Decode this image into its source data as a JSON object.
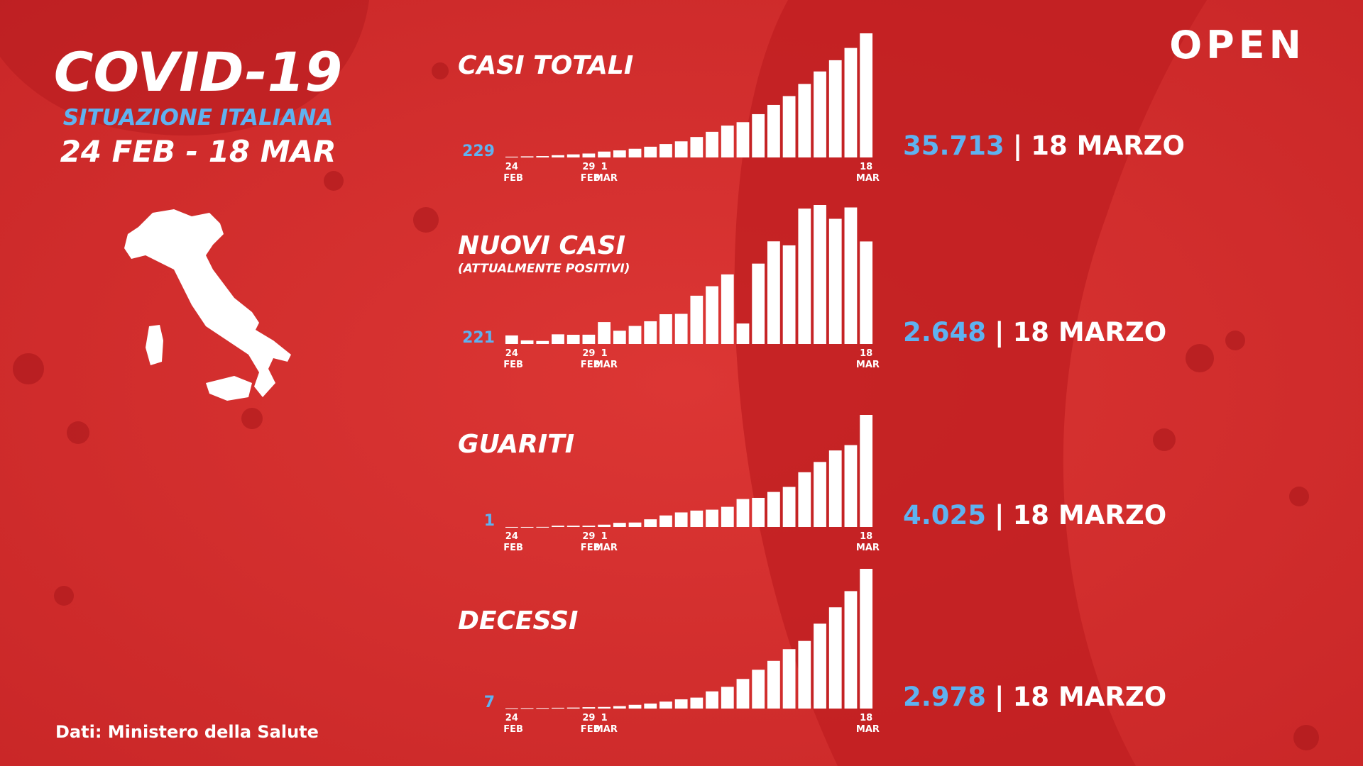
{
  "header": {
    "title": "COVID-19",
    "subtitle": "SITUAZIONE ITALIANA",
    "period": "24 FEB - 18 MAR",
    "logo": "OPEN",
    "source": "Dati: Ministero della Salute"
  },
  "chart_data": [
    {
      "type": "bar",
      "title": "CASI TOTALI",
      "color": "#ffffff",
      "categories": [
        "24 FEB",
        null,
        null,
        null,
        null,
        "29 FEB",
        "1 MAR",
        null,
        null,
        null,
        null,
        null,
        null,
        null,
        null,
        null,
        null,
        null,
        null,
        null,
        null,
        null,
        null,
        "18 MAR"
      ],
      "values": [
        229,
        322,
        400,
        650,
        888,
        1128,
        1694,
        2036,
        2502,
        3089,
        3858,
        4636,
        5883,
        7375,
        9172,
        10149,
        12462,
        15113,
        17660,
        21157,
        24747,
        27980,
        31506,
        35713
      ],
      "highlight": {
        "value_label": "35.713",
        "separator": "|",
        "date": "18 MARZO"
      }
    },
    {
      "type": "bar",
      "title": "NUOVI CASI",
      "subtitle": "(ATTUALMENTE POSITIVI)",
      "color": "#ffffff",
      "categories": [
        "24 FEB",
        null,
        null,
        null,
        null,
        "29 FEB",
        "1 MAR",
        null,
        null,
        null,
        null,
        null,
        null,
        null,
        null,
        null,
        null,
        null,
        null,
        null,
        null,
        null,
        null,
        "18 MAR"
      ],
      "values": [
        221,
        93,
        78,
        250,
        238,
        240,
        566,
        342,
        466,
        587,
        769,
        778,
        1247,
        1492,
        1797,
        529,
        2076,
        2651,
        2547,
        3497,
        3590,
        3233,
        3526,
        2648
      ],
      "highlight": {
        "value_label": "2.648",
        "separator": "|",
        "date": "18 MARZO"
      }
    },
    {
      "type": "bar",
      "title": "GUARITI",
      "color": "#ffffff",
      "categories": [
        "24 FEB",
        null,
        null,
        null,
        null,
        "29 FEB",
        "1 MAR",
        null,
        null,
        null,
        null,
        null,
        null,
        null,
        null,
        null,
        null,
        null,
        null,
        null,
        null,
        null,
        null,
        "18 MAR"
      ],
      "values": [
        1,
        1,
        3,
        45,
        46,
        46,
        83,
        149,
        160,
        276,
        414,
        523,
        589,
        622,
        724,
        1004,
        1045,
        1258,
        1439,
        1966,
        2335,
        2749,
        2941,
        4025
      ],
      "highlight": {
        "value_label": "4.025",
        "separator": "|",
        "date": "18 MARZO"
      }
    },
    {
      "type": "bar",
      "title": "DECESSI",
      "color": "#ffffff",
      "categories": [
        "24 FEB",
        null,
        null,
        null,
        null,
        "29 FEB",
        "1 MAR",
        null,
        null,
        null,
        null,
        null,
        null,
        null,
        null,
        null,
        null,
        null,
        null,
        null,
        null,
        null,
        null,
        "18 MAR"
      ],
      "values": [
        7,
        10,
        12,
        17,
        21,
        29,
        34,
        52,
        79,
        107,
        148,
        197,
        233,
        366,
        463,
        631,
        827,
        1016,
        1266,
        1441,
        1809,
        2158,
        2503,
        2978
      ],
      "highlight": {
        "value_label": "2.978",
        "separator": "|",
        "date": "18 MARZO"
      }
    }
  ]
}
